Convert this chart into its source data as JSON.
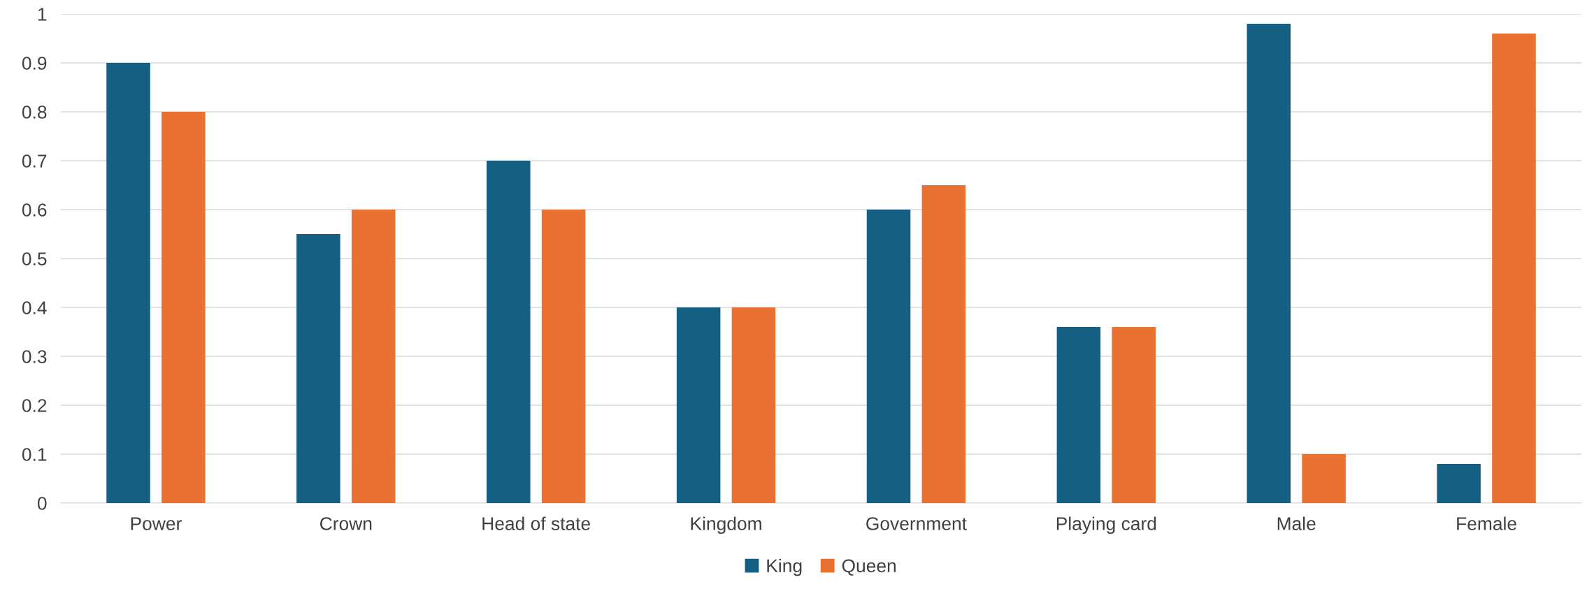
{
  "chart_data": {
    "type": "bar",
    "categories": [
      "Power",
      "Crown",
      "Head of state",
      "Kingdom",
      "Government",
      "Playing card",
      "Male",
      "Female"
    ],
    "series": [
      {
        "name": "King",
        "color": "#156082",
        "values": [
          0.9,
          0.55,
          0.7,
          0.4,
          0.6,
          0.36,
          0.98,
          0.08
        ]
      },
      {
        "name": "Queen",
        "color": "#e97132",
        "values": [
          0.8,
          0.6,
          0.6,
          0.4,
          0.65,
          0.36,
          0.1,
          0.96
        ]
      }
    ],
    "ylim": [
      0,
      1
    ],
    "yticks": [
      0,
      0.1,
      0.2,
      0.3,
      0.4,
      0.5,
      0.6,
      0.7,
      0.8,
      0.9,
      1
    ],
    "grid": "y",
    "legend": "bottom"
  }
}
